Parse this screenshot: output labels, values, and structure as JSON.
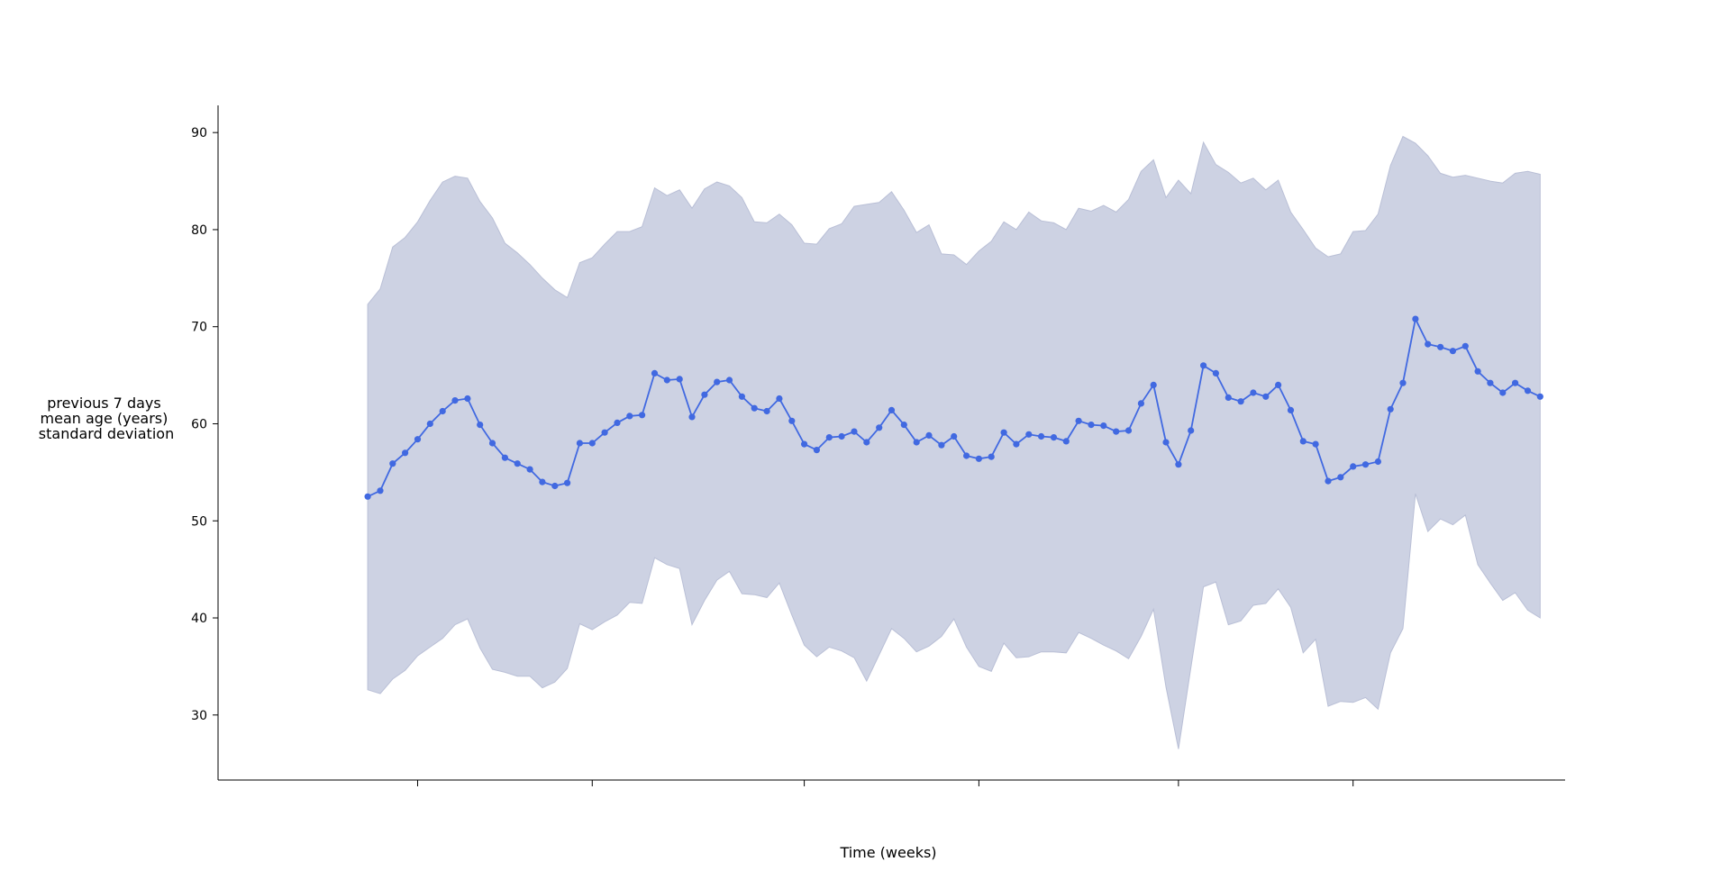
{
  "chart_data": {
    "type": "line",
    "xlabel": "Time (weeks)",
    "ylabel_lines": [
      "previous 7 days",
      "mean age (years)",
      "standard deviation"
    ],
    "ylim": [
      23.3,
      92.8
    ],
    "yticks": [
      30,
      40,
      50,
      60,
      70,
      80,
      90
    ],
    "xlim": [
      -12,
      96
    ],
    "xticks": [
      4,
      18,
      35,
      49,
      65,
      79
    ],
    "xtick_labels": [
      "",
      "",
      "",
      "",
      "",
      ""
    ],
    "grid": false,
    "legend": "none",
    "colors": {
      "line": "#4169e1",
      "band": "#cdd2e3",
      "band_edge": "#b9bfd6"
    },
    "series": [
      {
        "x": [
          0,
          1,
          2,
          3,
          4,
          5,
          6,
          7,
          8,
          9,
          10,
          11,
          12,
          13,
          14,
          15,
          16,
          17,
          18,
          19,
          20,
          21,
          22,
          23,
          24,
          25,
          26,
          27,
          28,
          29,
          30,
          31,
          32,
          33,
          34,
          35,
          36,
          37,
          38,
          39,
          40,
          41,
          42,
          43,
          44,
          45,
          46,
          47,
          48,
          49,
          50,
          51,
          52,
          53,
          54,
          55,
          56,
          57,
          58,
          59,
          60,
          61,
          62,
          63,
          64,
          65,
          66,
          67,
          68,
          69,
          70,
          71,
          72,
          73,
          74,
          75,
          76,
          77,
          78,
          79,
          80,
          81,
          82,
          83,
          84,
          85,
          86,
          87,
          88,
          89,
          90,
          91,
          92,
          93,
          94
        ],
        "mean": [
          52.5,
          53.1,
          55.9,
          57.0,
          58.4,
          60.0,
          61.3,
          62.4,
          62.6,
          59.9,
          58.0,
          56.5,
          55.9,
          55.3,
          54.0,
          53.6,
          53.9,
          58.0,
          58.0,
          59.1,
          60.1,
          60.8,
          60.9,
          65.2,
          64.5,
          64.6,
          60.7,
          63.0,
          64.3,
          64.5,
          62.8,
          61.6,
          61.3,
          62.6,
          60.3,
          57.9,
          57.3,
          58.6,
          58.7,
          59.2,
          58.1,
          59.6,
          61.4,
          59.9,
          58.1,
          58.8,
          57.8,
          58.7,
          56.7,
          56.4,
          56.6,
          59.1,
          57.9,
          58.9,
          58.7,
          58.6,
          58.2,
          60.3,
          59.9,
          59.8,
          59.2,
          59.3,
          62.1,
          64.0,
          58.1,
          55.8,
          59.3,
          66.0,
          65.2,
          62.7,
          62.3,
          63.2,
          62.8,
          64.0,
          61.4,
          58.2,
          57.9,
          54.1,
          54.5,
          55.6,
          55.8,
          56.1,
          61.5,
          64.2,
          70.8,
          68.2,
          67.9,
          67.5,
          68.0,
          65.4,
          64.2,
          63.2,
          64.2,
          63.4,
          62.8
        ],
        "upper": [
          72.3,
          73.9,
          78.2,
          79.2,
          80.8,
          83.0,
          84.9,
          85.5,
          85.3,
          82.9,
          81.2,
          78.6,
          77.6,
          76.4,
          75.0,
          73.8,
          73.0,
          76.6,
          77.1,
          78.5,
          79.8,
          79.8,
          80.3,
          84.3,
          83.5,
          84.1,
          82.2,
          84.2,
          84.9,
          84.5,
          83.3,
          80.8,
          80.7,
          81.6,
          80.5,
          78.6,
          78.5,
          80.1,
          80.6,
          82.4,
          82.6,
          82.8,
          83.9,
          82.0,
          79.7,
          80.5,
          77.5,
          77.4,
          76.4,
          77.8,
          78.8,
          80.8,
          80.0,
          81.8,
          80.9,
          80.7,
          80.0,
          82.2,
          81.9,
          82.5,
          81.8,
          83.1,
          86.0,
          87.2,
          83.3,
          85.1,
          83.7,
          89.0,
          86.7,
          85.9,
          84.8,
          85.3,
          84.1,
          85.1,
          81.8,
          80.0,
          78.1,
          77.2,
          77.5,
          79.8,
          79.9,
          81.6,
          86.6,
          89.6,
          88.9,
          87.6,
          85.8,
          85.4,
          85.6,
          85.3,
          85.0,
          84.8,
          85.8,
          86.0,
          85.7
        ],
        "lower": [
          32.6,
          32.2,
          33.7,
          34.6,
          36.1,
          37.0,
          37.9,
          39.3,
          39.9,
          36.9,
          34.7,
          34.4,
          34.0,
          34.0,
          32.8,
          33.4,
          34.8,
          39.4,
          38.8,
          39.6,
          40.3,
          41.6,
          41.5,
          46.2,
          45.5,
          45.1,
          39.3,
          41.8,
          43.9,
          44.8,
          42.5,
          42.4,
          42.1,
          43.6,
          40.3,
          37.2,
          36.0,
          37.0,
          36.6,
          35.9,
          33.5,
          36.2,
          38.9,
          37.9,
          36.5,
          37.1,
          38.1,
          39.9,
          37.0,
          35.0,
          34.5,
          37.4,
          35.9,
          36.0,
          36.5,
          36.5,
          36.4,
          38.5,
          37.9,
          37.2,
          36.6,
          35.8,
          38.1,
          40.9,
          32.9,
          26.5,
          34.9,
          43.2,
          43.7,
          39.3,
          39.7,
          41.3,
          41.5,
          43.0,
          41.1,
          36.4,
          37.8,
          30.9,
          31.4,
          31.3,
          31.8,
          30.6,
          36.4,
          38.9,
          52.8,
          48.9,
          50.2,
          49.6,
          50.6,
          45.5,
          43.6,
          41.8,
          42.6,
          40.8,
          40.0
        ]
      }
    ]
  }
}
